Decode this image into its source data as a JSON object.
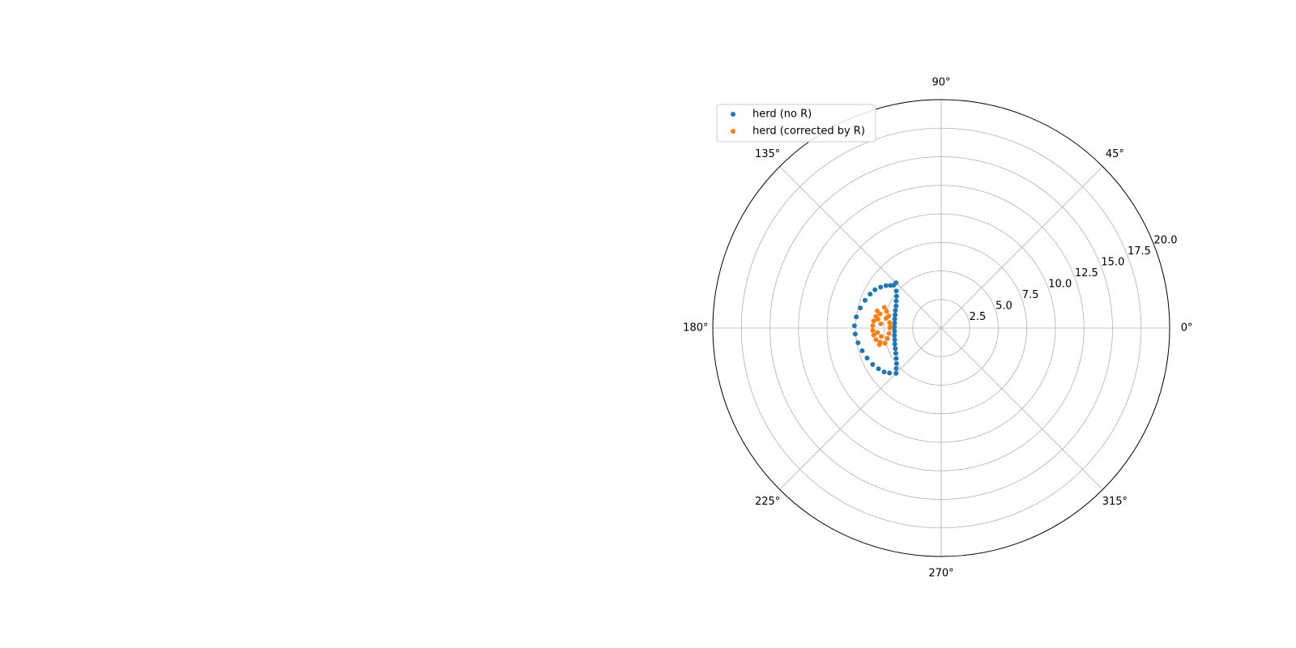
{
  "chart_data": {
    "type": "scatter",
    "projection": "polar",
    "title": "",
    "xlabel": "",
    "ylabel": "",
    "rlim": [
      0,
      20
    ],
    "r_ticks": [
      "2.5",
      "5.0",
      "7.5",
      "10.0",
      "12.5",
      "15.0",
      "17.5",
      "20.0"
    ],
    "r_tick_values": [
      2.5,
      5.0,
      7.5,
      10.0,
      12.5,
      15.0,
      17.5,
      20.0
    ],
    "theta_ticks": [
      "0°",
      "45°",
      "90°",
      "135°",
      "180°",
      "225°",
      "270°",
      "315°"
    ],
    "theta_tick_values": [
      0,
      45,
      90,
      135,
      180,
      225,
      270,
      315
    ],
    "grid": true,
    "legend_position": "upper-left",
    "series": [
      {
        "name": "herd (no R)",
        "color": "#1f77b4",
        "points": [
          {
            "theta": 138.0,
            "r": 5.6
          },
          {
            "theta": 140.0,
            "r": 5.8
          },
          {
            "theta": 142.5,
            "r": 6.1
          },
          {
            "theta": 146.0,
            "r": 6.4
          },
          {
            "theta": 150.0,
            "r": 6.7
          },
          {
            "theta": 154.5,
            "r": 6.9
          },
          {
            "theta": 160.0,
            "r": 7.1
          },
          {
            "theta": 166.0,
            "r": 7.3
          },
          {
            "theta": 172.5,
            "r": 7.5
          },
          {
            "theta": 178.5,
            "r": 7.6
          },
          {
            "theta": 184.0,
            "r": 7.55
          },
          {
            "theta": 190.0,
            "r": 7.4
          },
          {
            "theta": 196.0,
            "r": 7.2
          },
          {
            "theta": 202.0,
            "r": 7.0
          },
          {
            "theta": 208.0,
            "r": 6.8
          },
          {
            "theta": 213.0,
            "r": 6.55
          },
          {
            "theta": 217.5,
            "r": 6.3
          },
          {
            "theta": 221.0,
            "r": 6.0
          },
          {
            "theta": 135.0,
            "r": 5.6
          },
          {
            "theta": 140.5,
            "r": 5.1
          },
          {
            "theta": 144.5,
            "r": 4.8
          },
          {
            "theta": 149.0,
            "r": 4.6
          },
          {
            "theta": 154.0,
            "r": 4.4
          },
          {
            "theta": 159.0,
            "r": 4.3
          },
          {
            "theta": 164.0,
            "r": 4.2
          },
          {
            "theta": 169.0,
            "r": 4.15
          },
          {
            "theta": 174.0,
            "r": 4.1
          },
          {
            "theta": 179.0,
            "r": 4.1
          },
          {
            "theta": 184.0,
            "r": 4.1
          },
          {
            "theta": 189.0,
            "r": 4.15
          },
          {
            "theta": 194.0,
            "r": 4.2
          },
          {
            "theta": 199.0,
            "r": 4.3
          },
          {
            "theta": 204.0,
            "r": 4.4
          },
          {
            "theta": 209.0,
            "r": 4.55
          },
          {
            "theta": 214.0,
            "r": 4.75
          },
          {
            "theta": 218.5,
            "r": 5.0
          },
          {
            "theta": 222.0,
            "r": 5.3
          },
          {
            "theta": 225.0,
            "r": 5.6
          }
        ]
      },
      {
        "name": "herd (corrected by R)",
        "color": "#ff7f0e",
        "points": [
          {
            "theta": 170.0,
            "r": 4.9
          },
          {
            "theta": 163.0,
            "r": 5.0
          },
          {
            "theta": 167.0,
            "r": 5.5
          },
          {
            "theta": 170.0,
            "r": 5.8
          },
          {
            "theta": 174.0,
            "r": 5.95
          },
          {
            "theta": 178.0,
            "r": 6.0
          },
          {
            "theta": 182.0,
            "r": 6.0
          },
          {
            "theta": 186.0,
            "r": 5.95
          },
          {
            "theta": 190.0,
            "r": 5.8
          },
          {
            "theta": 193.0,
            "r": 5.5
          },
          {
            "theta": 195.0,
            "r": 5.1
          },
          {
            "theta": 191.0,
            "r": 4.8
          },
          {
            "theta": 186.0,
            "r": 4.6
          },
          {
            "theta": 180.0,
            "r": 4.5
          },
          {
            "theta": 174.0,
            "r": 4.55
          },
          {
            "theta": 167.0,
            "r": 4.7
          },
          {
            "theta": 176.0,
            "r": 5.3
          },
          {
            "theta": 172.0,
            "r": 5.6
          },
          {
            "theta": 184.0,
            "r": 5.6
          },
          {
            "theta": 188.0,
            "r": 5.3
          },
          {
            "theta": 160.0,
            "r": 5.3
          },
          {
            "theta": 178.0,
            "r": 4.45
          },
          {
            "theta": 195.0,
            "r": 5.6
          },
          {
            "theta": 165.0,
            "r": 5.8
          }
        ]
      }
    ]
  }
}
